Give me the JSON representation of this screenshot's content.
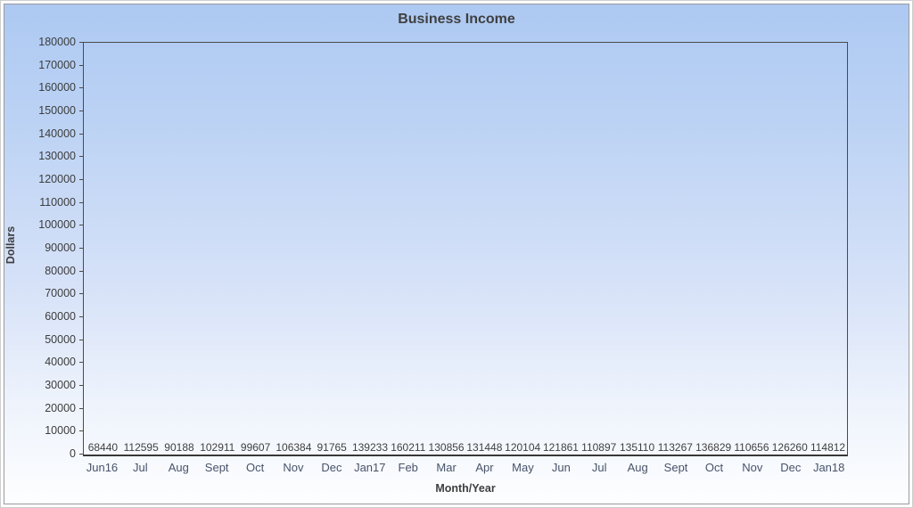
{
  "chart_data": {
    "type": "bar",
    "title": "Business Income",
    "xlabel": "Month/Year",
    "ylabel": "Dollars",
    "categories": [
      "Jun16",
      "Jul",
      "Aug",
      "Sept",
      "Oct",
      "Nov",
      "Dec",
      "Jan17",
      "Feb",
      "Mar",
      "Apr",
      "May",
      "Jun",
      "Jul",
      "Aug",
      "Sept",
      "Oct",
      "Nov",
      "Dec",
      "Jan18"
    ],
    "values": [
      68440,
      112595,
      90188,
      102911,
      99607,
      106384,
      91765,
      139233,
      160211,
      130856,
      131448,
      120104,
      121861,
      110897,
      135110,
      113267,
      136829,
      110656,
      126260,
      114812
    ],
    "bar_colors": [
      "#e2695e",
      "#98fb8e",
      "#6165e8",
      "#ffff99",
      "#e863e8",
      "#d9fffb",
      "#f5d36b",
      "#cdcdcd",
      "#c6989b",
      "#569868",
      "#9da22e",
      "#c2411c",
      "#739da0",
      "#9c3c38",
      "#2e661a",
      "#8e1d96",
      "#f09e6e",
      "#adf9a4",
      "#989bf0",
      "#c2702a"
    ],
    "ylim": [
      0,
      180000
    ],
    "ytick_step": 10000,
    "grid": false,
    "legend_position": "none",
    "value_labels": true
  },
  "colors": {
    "background_top": "#adc9f2",
    "background_bottom": "#fdfeff",
    "title_text": "#3f3f3f",
    "axis_text": "#3c3c3c",
    "category_text": "#48536a",
    "plot_border": "#4a4a4a"
  }
}
